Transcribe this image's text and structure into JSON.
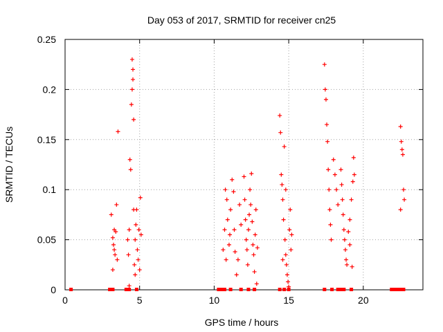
{
  "chart_data": {
    "type": "scatter",
    "title": "Day 053 of 2017, SRMTID for receiver cn25",
    "xlabel": "GPS time / hours",
    "ylabel": "SRMTID / TECUs",
    "xlim": [
      0,
      24
    ],
    "ylim": [
      0,
      0.25
    ],
    "xticks": [
      0,
      5,
      10,
      15,
      20
    ],
    "yticks": [
      0,
      0.05,
      0.1,
      0.15,
      0.2,
      0.25
    ],
    "ytick_labels": [
      "0",
      "0.05",
      "0.1",
      "0.15",
      "0.2",
      "0.25"
    ],
    "grid": true,
    "marker": "+",
    "color": "#ff0000",
    "series": [
      {
        "name": "SRMTID",
        "points": [
          [
            3.1,
            0.075
          ],
          [
            3.2,
            0.052
          ],
          [
            3.25,
            0.045
          ],
          [
            3.3,
            0.04
          ],
          [
            3.35,
            0.035
          ],
          [
            3.4,
            0.058
          ],
          [
            3.45,
            0.085
          ],
          [
            3.5,
            0.03
          ],
          [
            3.55,
            0.158
          ],
          [
            3.2,
            0.02
          ],
          [
            3.3,
            0.06
          ],
          [
            4.2,
            0.05
          ],
          [
            4.25,
            0.035
          ],
          [
            4.3,
            0.06
          ],
          [
            4.35,
            0.13
          ],
          [
            4.4,
            0.12
          ],
          [
            4.45,
            0.185
          ],
          [
            4.5,
            0.2
          ],
          [
            4.5,
            0.23
          ],
          [
            4.55,
            0.22
          ],
          [
            4.55,
            0.21
          ],
          [
            4.6,
            0.17
          ],
          [
            4.6,
            0.08
          ],
          [
            4.65,
            0.025
          ],
          [
            4.7,
            0.05
          ],
          [
            4.75,
            0.065
          ],
          [
            4.8,
            0.08
          ],
          [
            4.85,
            0.04
          ],
          [
            4.9,
            0.03
          ],
          [
            4.95,
            0.06
          ],
          [
            5.0,
            0.02
          ],
          [
            5.05,
            0.092
          ],
          [
            5.1,
            0.055
          ],
          [
            4.3,
            0.004
          ],
          [
            4.7,
            0.015
          ],
          [
            10.6,
            0.04
          ],
          [
            10.7,
            0.06
          ],
          [
            10.75,
            0.1
          ],
          [
            10.8,
            0.03
          ],
          [
            10.85,
            0.09
          ],
          [
            10.9,
            0.07
          ],
          [
            11.0,
            0.045
          ],
          [
            11.05,
            0.055
          ],
          [
            11.1,
            0.08
          ],
          [
            11.2,
            0.11
          ],
          [
            11.3,
            0.098
          ],
          [
            11.35,
            0.06
          ],
          [
            11.4,
            0.038
          ],
          [
            11.5,
            0.015
          ],
          [
            11.6,
            0.03
          ],
          [
            11.7,
            0.085
          ],
          [
            11.8,
            0.065
          ],
          [
            12.0,
            0.113
          ],
          [
            12.05,
            0.09
          ],
          [
            12.1,
            0.07
          ],
          [
            12.15,
            0.05
          ],
          [
            12.2,
            0.04
          ],
          [
            12.25,
            0.025
          ],
          [
            12.3,
            0.06
          ],
          [
            12.35,
            0.075
          ],
          [
            12.4,
            0.1
          ],
          [
            12.45,
            0.085
          ],
          [
            12.5,
            0.116
          ],
          [
            12.55,
            0.068
          ],
          [
            12.6,
            0.045
          ],
          [
            12.65,
            0.035
          ],
          [
            12.7,
            0.018
          ],
          [
            12.75,
            0.055
          ],
          [
            12.8,
            0.08
          ],
          [
            12.85,
            0.006
          ],
          [
            12.9,
            0.042
          ],
          [
            14.4,
            0.174
          ],
          [
            14.45,
            0.157
          ],
          [
            14.5,
            0.115
          ],
          [
            14.55,
            0.105
          ],
          [
            14.6,
            0.09
          ],
          [
            14.65,
            0.07
          ],
          [
            14.7,
            0.143
          ],
          [
            14.75,
            0.05
          ],
          [
            14.8,
            0.035
          ],
          [
            14.85,
            0.025
          ],
          [
            14.9,
            0.015
          ],
          [
            14.95,
            0.008
          ],
          [
            15.0,
            0.003
          ],
          [
            15.05,
            0.06
          ],
          [
            15.1,
            0.08
          ],
          [
            15.15,
            0.04
          ],
          [
            15.2,
            0.055
          ],
          [
            14.6,
            0.03
          ],
          [
            14.8,
            0.1
          ],
          [
            17.4,
            0.225
          ],
          [
            17.45,
            0.2
          ],
          [
            17.5,
            0.19
          ],
          [
            17.55,
            0.165
          ],
          [
            17.6,
            0.148
          ],
          [
            17.65,
            0.12
          ],
          [
            17.7,
            0.1
          ],
          [
            17.75,
            0.08
          ],
          [
            17.8,
            0.065
          ],
          [
            17.85,
            0.05
          ],
          [
            18.0,
            0.13
          ],
          [
            18.1,
            0.115
          ],
          [
            18.2,
            0.1
          ],
          [
            18.3,
            0.085
          ],
          [
            18.5,
            0.12
          ],
          [
            18.55,
            0.105
          ],
          [
            18.6,
            0.09
          ],
          [
            18.65,
            0.075
          ],
          [
            18.7,
            0.06
          ],
          [
            18.75,
            0.05
          ],
          [
            18.8,
            0.04
          ],
          [
            18.85,
            0.03
          ],
          [
            18.9,
            0.025
          ],
          [
            19.0,
            0.058
          ],
          [
            19.1,
            0.07
          ],
          [
            19.2,
            0.09
          ],
          [
            19.3,
            0.108
          ],
          [
            19.35,
            0.132
          ],
          [
            19.4,
            0.115
          ],
          [
            19.1,
            0.045
          ],
          [
            19.25,
            0.023
          ],
          [
            22.5,
            0.163
          ],
          [
            22.55,
            0.148
          ],
          [
            22.6,
            0.14
          ],
          [
            22.65,
            0.135
          ],
          [
            22.7,
            0.1
          ],
          [
            22.75,
            0.09
          ],
          [
            22.5,
            0.08
          ]
        ]
      }
    ],
    "baseline_points": [
      0.4,
      3.0,
      3.1,
      3.2,
      4.1,
      4.2,
      4.3,
      4.8,
      10.3,
      10.4,
      10.6,
      10.7,
      11.1,
      11.8,
      12.3,
      12.7,
      14.4,
      14.7,
      15.0,
      17.4,
      17.9,
      18.3,
      18.5,
      18.7,
      19.2,
      21.9,
      22.0,
      22.1,
      22.2,
      22.3,
      22.4,
      22.5,
      22.7
    ]
  }
}
